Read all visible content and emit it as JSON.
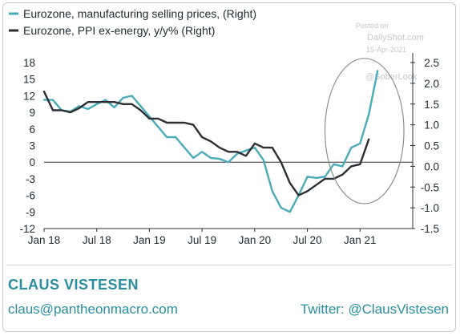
{
  "watermark": {
    "line1": "Posted on",
    "line2": "DailyShot.com",
    "line3": "15-Apr-2021",
    "handle": "@SoberLook"
  },
  "chart_data": {
    "type": "line",
    "x_axis": {
      "start": "2018-01",
      "end": "2021-03",
      "tick_labels": [
        "Jan 18",
        "Jul 18",
        "Jan 19",
        "Jul 19",
        "Jan 20",
        "Jul 20",
        "Jan 21"
      ],
      "tick_months": [
        0,
        6,
        12,
        18,
        24,
        30,
        36
      ]
    },
    "y_left": {
      "ylim": [
        -12,
        18
      ],
      "ticks": [
        18,
        15,
        12,
        9,
        6,
        3,
        0,
        -3,
        -6,
        -9,
        -12
      ]
    },
    "y_right": {
      "ylim": [
        -1.5,
        2.5
      ],
      "ticks": [
        "2.5",
        "2.0",
        "1.5",
        "1.0",
        "0.5",
        "0.0",
        "-0.5",
        "-1.0",
        "-1.5"
      ]
    },
    "zero_line": true,
    "highlight_ellipse": {
      "x_from": "2020-09",
      "x_to": "2021-06",
      "axis": "right",
      "y_from": -0.9,
      "y_to": 2.6
    },
    "series": [
      {
        "name": "Eurozone, manufacturing selling prices, (Right)",
        "axis": "right",
        "color": "#4aaab8",
        "points": [
          [
            "2018-01",
            1.6
          ],
          [
            "2018-02",
            1.6
          ],
          [
            "2018-03",
            1.35
          ],
          [
            "2018-04",
            1.32
          ],
          [
            "2018-05",
            1.45
          ],
          [
            "2018-06",
            1.38
          ],
          [
            "2018-07",
            1.5
          ],
          [
            "2018-08",
            1.6
          ],
          [
            "2018-09",
            1.42
          ],
          [
            "2018-10",
            1.65
          ],
          [
            "2018-11",
            1.7
          ],
          [
            "2018-12",
            1.45
          ],
          [
            "2019-01",
            1.2
          ],
          [
            "2019-02",
            0.95
          ],
          [
            "2019-03",
            0.7
          ],
          [
            "2019-04",
            0.7
          ],
          [
            "2019-05",
            0.45
          ],
          [
            "2019-06",
            0.2
          ],
          [
            "2019-07",
            0.35
          ],
          [
            "2019-08",
            0.2
          ],
          [
            "2019-09",
            0.18
          ],
          [
            "2019-10",
            0.1
          ],
          [
            "2019-11",
            0.3
          ],
          [
            "2019-12",
            0.38
          ],
          [
            "2020-01",
            0.45
          ],
          [
            "2020-02",
            0.15
          ],
          [
            "2020-03",
            -0.6
          ],
          [
            "2020-04",
            -1.0
          ],
          [
            "2020-05",
            -1.1
          ],
          [
            "2020-06",
            -0.7
          ],
          [
            "2020-07",
            -0.25
          ],
          [
            "2020-08",
            -0.28
          ],
          [
            "2020-09",
            -0.25
          ],
          [
            "2020-10",
            0.05
          ],
          [
            "2020-11",
            0.0
          ],
          [
            "2020-12",
            0.45
          ],
          [
            "2021-01",
            0.55
          ],
          [
            "2021-02",
            1.25
          ],
          [
            "2021-03",
            2.3
          ]
        ]
      },
      {
        "name": "Eurozone, PPI ex-energy, y/y% (Right)",
        "axis": "right",
        "color": "#2b2f33",
        "points": [
          [
            "2018-01",
            1.8
          ],
          [
            "2018-02",
            1.35
          ],
          [
            "2018-03",
            1.35
          ],
          [
            "2018-04",
            1.3
          ],
          [
            "2018-05",
            1.4
          ],
          [
            "2018-06",
            1.55
          ],
          [
            "2018-07",
            1.55
          ],
          [
            "2018-08",
            1.55
          ],
          [
            "2018-09",
            1.55
          ],
          [
            "2018-10",
            1.5
          ],
          [
            "2018-11",
            1.5
          ],
          [
            "2018-12",
            1.35
          ],
          [
            "2019-01",
            1.15
          ],
          [
            "2019-02",
            1.15
          ],
          [
            "2019-03",
            1.05
          ],
          [
            "2019-04",
            1.05
          ],
          [
            "2019-05",
            1.05
          ],
          [
            "2019-06",
            1.0
          ],
          [
            "2019-07",
            0.7
          ],
          [
            "2019-08",
            0.6
          ],
          [
            "2019-09",
            0.45
          ],
          [
            "2019-10",
            0.35
          ],
          [
            "2019-11",
            0.35
          ],
          [
            "2019-12",
            0.25
          ],
          [
            "2020-01",
            0.55
          ],
          [
            "2020-02",
            0.45
          ],
          [
            "2020-03",
            0.45
          ],
          [
            "2020-04",
            0.1
          ],
          [
            "2020-05",
            -0.4
          ],
          [
            "2020-06",
            -0.7
          ],
          [
            "2020-07",
            -0.6
          ],
          [
            "2020-08",
            -0.45
          ],
          [
            "2020-09",
            -0.3
          ],
          [
            "2020-10",
            -0.3
          ],
          [
            "2020-11",
            -0.2
          ],
          [
            "2020-12",
            0.0
          ],
          [
            "2021-01",
            0.05
          ],
          [
            "2021-02",
            0.65
          ]
        ]
      }
    ]
  },
  "footer": {
    "author": "CLAUS VISTESEN",
    "email": "claus@pantheonmacro.com",
    "twitter": "Twitter: @ClausVistesen"
  }
}
